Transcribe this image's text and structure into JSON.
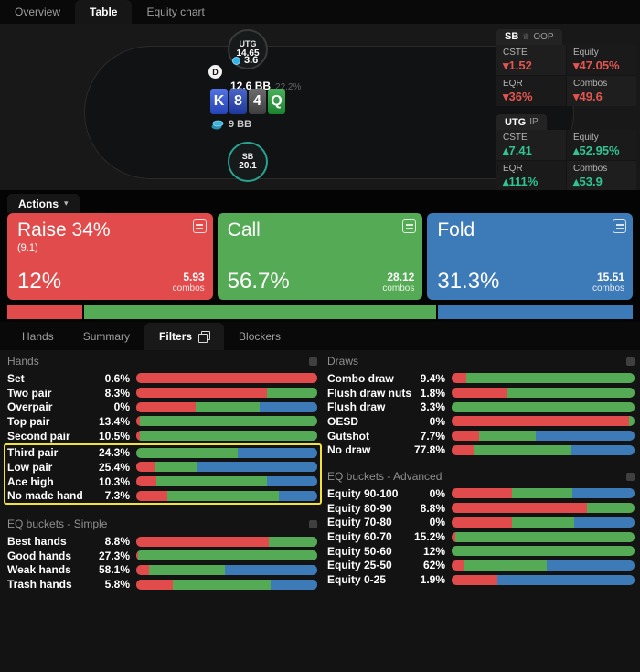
{
  "colors": {
    "red": "#e14b4b",
    "green": "#55ab55",
    "blue": "#3d7ab8",
    "neg": "#e25550",
    "pos": "#2fc493",
    "highlight": "#f2e33b"
  },
  "top_tabs": {
    "items": [
      {
        "label": "Overview"
      },
      {
        "label": "Table"
      },
      {
        "label": "Equity chart"
      }
    ],
    "active": "Table"
  },
  "table_view": {
    "utg_seat": {
      "position": "UTG",
      "stack": "14.65"
    },
    "dealer_button": "D",
    "bet_amount": "3.6",
    "pot": "12.6 BB",
    "pot_pct": "22.2%",
    "board": [
      {
        "rank": "K",
        "color": "#2d53dd"
      },
      {
        "rank": "8",
        "color": "#2443bd"
      },
      {
        "rank": "4",
        "color": "#4c4c4c"
      },
      {
        "rank": "Q",
        "color": "#21a038"
      }
    ],
    "pot_chips": "9 BB",
    "sb_seat": {
      "position": "SB",
      "stack": "20.1"
    }
  },
  "stats_panels": [
    {
      "who": "SB",
      "role": "OOP",
      "crowned": true,
      "dir": "down",
      "cells": [
        {
          "label": "CSTE",
          "value": "1.52"
        },
        {
          "label": "Equity",
          "value": "47.05%"
        },
        {
          "label": "EQR",
          "value": "36%"
        },
        {
          "label": "Combos",
          "value": "49.6"
        }
      ]
    },
    {
      "who": "UTG",
      "role": "IP",
      "crowned": false,
      "dir": "up",
      "cells": [
        {
          "label": "CSTE",
          "value": "7.41"
        },
        {
          "label": "Equity",
          "value": "52.95%"
        },
        {
          "label": "EQR",
          "value": "111%"
        },
        {
          "label": "Combos",
          "value": "53.9"
        }
      ]
    }
  ],
  "actions": {
    "label": "Actions",
    "boxes": [
      {
        "title": "Raise 34%",
        "sub": "(9.1)",
        "pct": "12%",
        "combos": "5.93",
        "combos_label": "combos",
        "colorKey": "red"
      },
      {
        "title": "Call",
        "sub": "",
        "pct": "56.7%",
        "combos": "28.12",
        "combos_label": "combos",
        "colorKey": "green"
      },
      {
        "title": "Fold",
        "sub": "",
        "pct": "31.3%",
        "combos": "15.51",
        "combos_label": "combos",
        "colorKey": "blue"
      }
    ],
    "bar": [
      {
        "colorKey": "red",
        "width": 12
      },
      {
        "colorKey": "green",
        "width": 56.7
      },
      {
        "colorKey": "blue",
        "width": 31.3
      }
    ]
  },
  "filter_tabs": {
    "items": [
      {
        "label": "Hands"
      },
      {
        "label": "Summary"
      },
      {
        "label": "Filters",
        "icon": "copy-icon"
      },
      {
        "label": "Blockers"
      }
    ],
    "active": "Filters"
  },
  "chart_data": {
    "type": "bar",
    "note": "stacked horizontal distribution bars; seg = [raise%, call%, fold%] share of each category",
    "left_sections": [
      {
        "title": "Hands",
        "highlight": [
          5,
          8
        ],
        "rows": [
          {
            "label": "Set",
            "pct": "0.6%",
            "seg": [
              100,
              0,
              0
            ]
          },
          {
            "label": "Two pair",
            "pct": "8.3%",
            "seg": [
              72,
              28,
              0
            ]
          },
          {
            "label": "Overpair",
            "pct": "0%",
            "seg": [
              33,
              35,
              32
            ]
          },
          {
            "label": "Top pair",
            "pct": "13.4%",
            "seg": [
              2,
              98,
              0
            ]
          },
          {
            "label": "Second pair",
            "pct": "10.5%",
            "seg": [
              2,
              98,
              0
            ]
          },
          {
            "label": "Third pair",
            "pct": "24.3%",
            "seg": [
              0,
              56,
              44
            ]
          },
          {
            "label": "Low pair",
            "pct": "25.4%",
            "seg": [
              10,
              24,
              66
            ]
          },
          {
            "label": "Ace high",
            "pct": "10.3%",
            "seg": [
              11,
              61,
              28
            ]
          },
          {
            "label": "No made hand",
            "pct": "7.3%",
            "seg": [
              17,
              62,
              21
            ]
          }
        ]
      },
      {
        "title": "EQ buckets - Simple",
        "rows": [
          {
            "label": "Best hands",
            "pct": "8.8%",
            "seg": [
              73,
              27,
              0
            ]
          },
          {
            "label": "Good hands",
            "pct": "27.3%",
            "seg": [
              1,
              99,
              0
            ]
          },
          {
            "label": "Weak hands",
            "pct": "58.1%",
            "seg": [
              7,
              42,
              51
            ]
          },
          {
            "label": "Trash hands",
            "pct": "5.8%",
            "seg": [
              20,
              54,
              26
            ]
          }
        ]
      }
    ],
    "right_sections": [
      {
        "title": "Draws",
        "rows": [
          {
            "label": "Combo draw",
            "pct": "9.4%",
            "seg": [
              8,
              92,
              0
            ]
          },
          {
            "label": "Flush draw nuts",
            "pct": "1.8%",
            "seg": [
              30,
              70,
              0
            ]
          },
          {
            "label": "Flush draw",
            "pct": "3.3%",
            "seg": [
              0,
              100,
              0
            ]
          },
          {
            "label": "OESD",
            "pct": "0%",
            "seg": [
              97,
              3,
              0
            ]
          },
          {
            "label": "Gutshot",
            "pct": "7.7%",
            "seg": [
              15,
              31,
              54
            ]
          },
          {
            "label": "No draw",
            "pct": "77.8%",
            "seg": [
              12,
              53,
              35
            ]
          }
        ]
      },
      {
        "title": "EQ buckets - Advanced",
        "rows": [
          {
            "label": "Equity 90-100",
            "pct": "0%",
            "seg": [
              33,
              33,
              34
            ]
          },
          {
            "label": "Equity 80-90",
            "pct": "8.8%",
            "seg": [
              74,
              26,
              0
            ]
          },
          {
            "label": "Equity 70-80",
            "pct": "0%",
            "seg": [
              33,
              34,
              33
            ]
          },
          {
            "label": "Equity 60-70",
            "pct": "15.2%",
            "seg": [
              2,
              98,
              0
            ]
          },
          {
            "label": "Equity 50-60",
            "pct": "12%",
            "seg": [
              0,
              100,
              0
            ]
          },
          {
            "label": "Equity 25-50",
            "pct": "62%",
            "seg": [
              7,
              45,
              48
            ]
          },
          {
            "label": "Equity 0-25",
            "pct": "1.9%",
            "seg": [
              25,
              0,
              75
            ]
          }
        ]
      }
    ]
  }
}
